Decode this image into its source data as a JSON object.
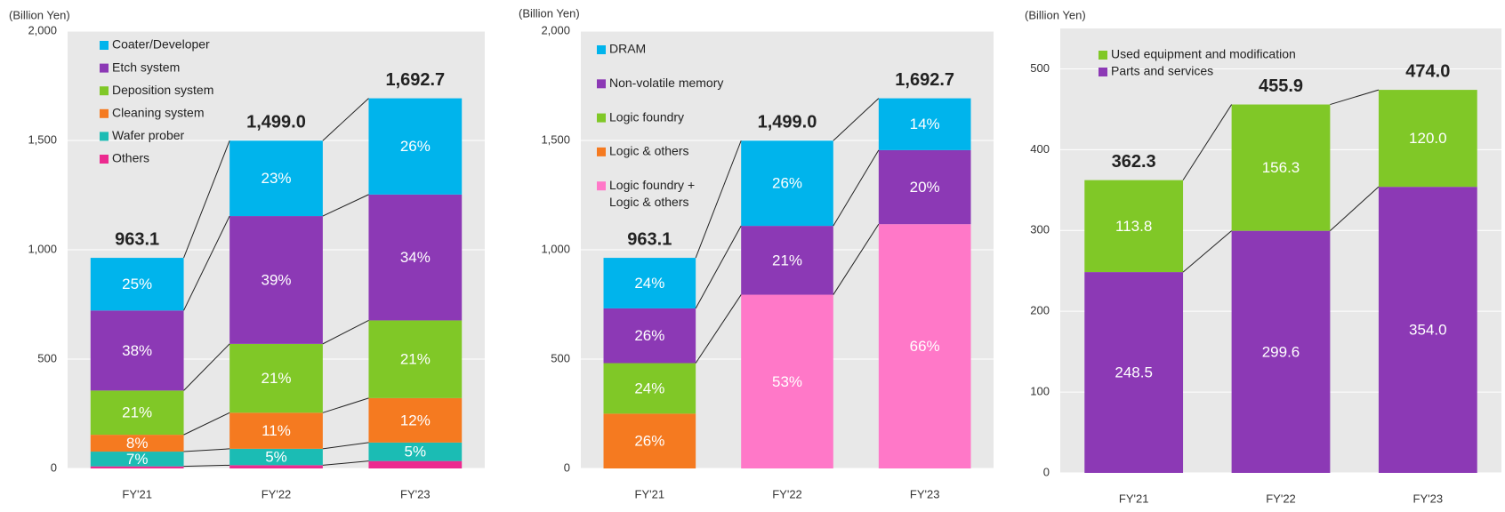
{
  "chart_data": [
    {
      "type": "stacked-bar",
      "y_label": "(Billion Yen)",
      "categories": [
        "FY'21",
        "FY'22",
        "FY'23"
      ],
      "ylim": [
        0,
        2000
      ],
      "yticks": [
        0,
        500,
        {
          "value": 1000,
          "label": "1,000"
        },
        {
          "value": 1500,
          "label": "1,500"
        },
        {
          "value": 2000,
          "label": "2,000"
        }
      ],
      "grid": true,
      "totals": [
        963.1,
        1499.0,
        1692.7
      ],
      "total_labels": [
        "963.1",
        "1,499.0",
        "1,692.7"
      ],
      "series": [
        {
          "name": "Coater/Developer",
          "color": "#00b4ec",
          "values": [
            240.8,
            344.8,
            440.1
          ],
          "value_labels": [
            "25%",
            "23%",
            "26%"
          ]
        },
        {
          "name": "Etch system",
          "color": "#8c39b5",
          "values": [
            366.0,
            584.6,
            575.5
          ],
          "value_labels": [
            "38%",
            "39%",
            "34%"
          ]
        },
        {
          "name": "Deposition system",
          "color": "#80c827",
          "values": [
            202.3,
            314.8,
            355.5
          ],
          "value_labels": [
            "21%",
            "21%",
            "21%"
          ]
        },
        {
          "name": "Cleaning system",
          "color": "#f57a20",
          "values": [
            77.0,
            164.9,
            203.1
          ],
          "value_labels": [
            "8%",
            "11%",
            "12%"
          ]
        },
        {
          "name": "Wafer prober",
          "color": "#1bbcb4",
          "values": [
            67.4,
            75.0,
            84.6
          ],
          "value_labels": [
            "7%",
            "5%",
            "5%"
          ]
        },
        {
          "name": "Others",
          "color": "#ec2a8f",
          "values": [
            9.6,
            14.9,
            33.9
          ],
          "value_labels": [
            null,
            null,
            null
          ]
        }
      ]
    },
    {
      "type": "stacked-bar",
      "y_label": "(Billion Yen)",
      "categories": [
        "FY'21",
        "FY'22",
        "FY'23"
      ],
      "ylim": [
        0,
        2000
      ],
      "yticks": [
        0,
        500,
        {
          "value": 1000,
          "label": "1,000"
        },
        {
          "value": 1500,
          "label": "1,500"
        },
        {
          "value": 2000,
          "label": "2,000"
        }
      ],
      "grid": true,
      "totals": [
        963.1,
        1499.0,
        1692.7
      ],
      "total_labels": [
        "963.1",
        "1,499.0",
        "1,692.7"
      ],
      "series": [
        {
          "name": "DRAM",
          "color": "#00b4ec",
          "values": [
            231.1,
            389.7,
            237.0
          ],
          "value_labels": [
            "24%",
            "26%",
            "14%"
          ]
        },
        {
          "name": "Non-volatile memory",
          "color": "#8c39b5",
          "values": [
            250.4,
            314.8,
            338.5
          ],
          "value_labels": [
            "26%",
            "21%",
            "20%"
          ]
        },
        {
          "name": "Logic foundry",
          "color": "#80c827",
          "values": [
            231.1,
            null,
            null
          ],
          "value_labels": [
            "24%",
            null,
            null
          ]
        },
        {
          "name": "Logic & others",
          "color": "#f57a20",
          "values": [
            250.5,
            null,
            null
          ],
          "value_labels": [
            "26%",
            null,
            null
          ]
        },
        {
          "name": "Logic foundry + Logic & others",
          "color": "#ff78c8",
          "values": [
            null,
            794.5,
            1117.2
          ],
          "value_labels": [
            null,
            "53%",
            "66%"
          ]
        }
      ]
    },
    {
      "type": "stacked-bar",
      "y_label": "(Billion Yen)",
      "categories": [
        "FY'21",
        "FY'22",
        "FY'23"
      ],
      "ylim": [
        0,
        550
      ],
      "yticks": [
        0,
        100,
        200,
        300,
        400,
        500
      ],
      "grid": true,
      "totals": [
        362.3,
        455.9,
        474.0
      ],
      "total_labels": [
        "362.3",
        "455.9",
        "474.0"
      ],
      "series": [
        {
          "name": "Used equipment and modification",
          "color": "#80c827",
          "values": [
            113.8,
            156.3,
            120.0
          ],
          "value_labels": [
            "113.8",
            "156.3",
            "120.0"
          ]
        },
        {
          "name": "Parts and services",
          "color": "#8c39b5",
          "values": [
            248.5,
            299.6,
            354.0
          ],
          "value_labels": [
            "248.5",
            "299.6",
            "354.0"
          ]
        }
      ]
    }
  ]
}
